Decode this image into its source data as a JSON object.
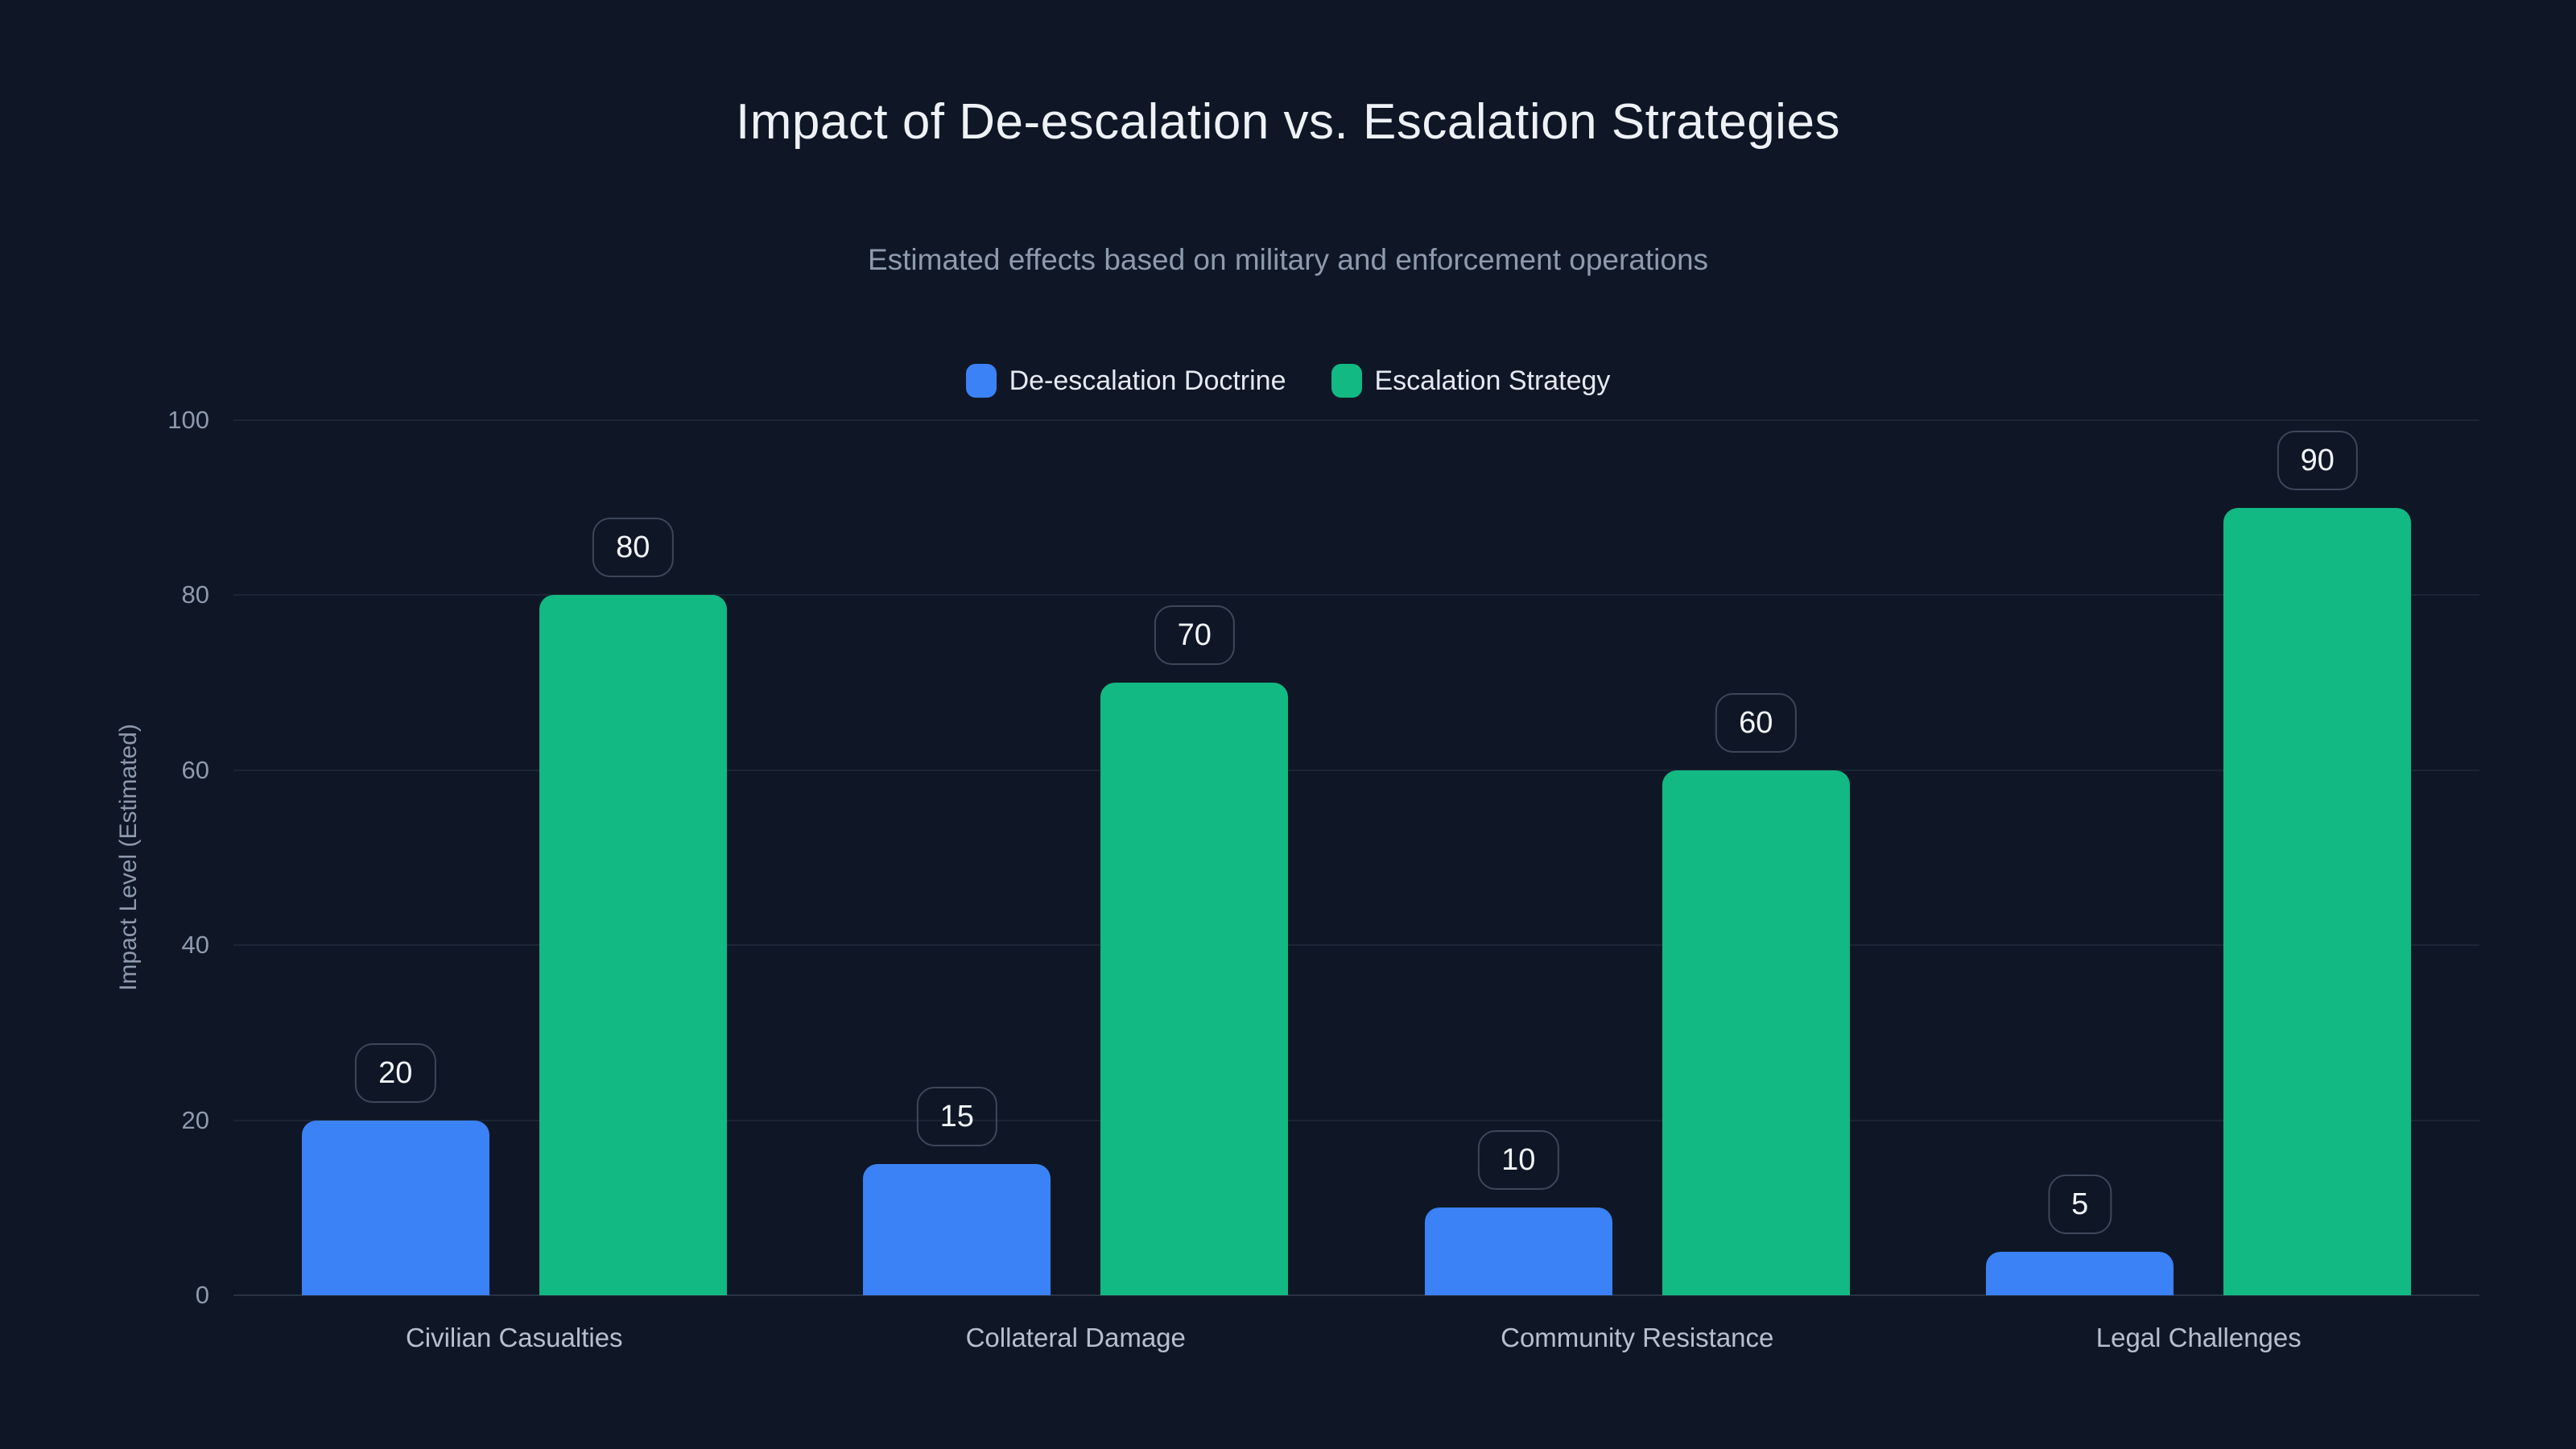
{
  "page": {
    "background": "#0f1726"
  },
  "chart_data": {
    "type": "bar",
    "title": "Impact of De-escalation vs. Escalation Strategies",
    "subtitle": "Estimated effects based on military and enforcement operations",
    "categories": [
      "Civilian Casualties",
      "Collateral Damage",
      "Community Resistance",
      "Legal Challenges"
    ],
    "series": [
      {
        "name": "De-escalation Doctrine",
        "color": "#3b82f6",
        "values": [
          20,
          15,
          10,
          5
        ]
      },
      {
        "name": "Escalation Strategy",
        "color": "#12b983",
        "values": [
          80,
          70,
          60,
          90
        ]
      }
    ],
    "xlabel": "",
    "ylabel": "Impact Level (Estimated)",
    "ylim": [
      0,
      100
    ],
    "yticks": [
      0,
      20,
      40,
      60,
      80,
      100
    ],
    "grid": true,
    "legend_position": "top-center",
    "value_labels": true
  },
  "colors": {
    "background": "#0f1726",
    "bar_blue": "#3b82f6",
    "bar_green": "#12b983",
    "grid_line": "rgba(148,163,184,0.10)",
    "axis_line": "rgba(148,163,184,0.20)",
    "title_text": "#eef2f7",
    "muted_text": "#8e9aad",
    "category_text": "#b6c0cd",
    "legend_text": "#e4eaf2",
    "value_pill_border": "#3d4759",
    "value_pill_text": "#f3f6fa"
  }
}
